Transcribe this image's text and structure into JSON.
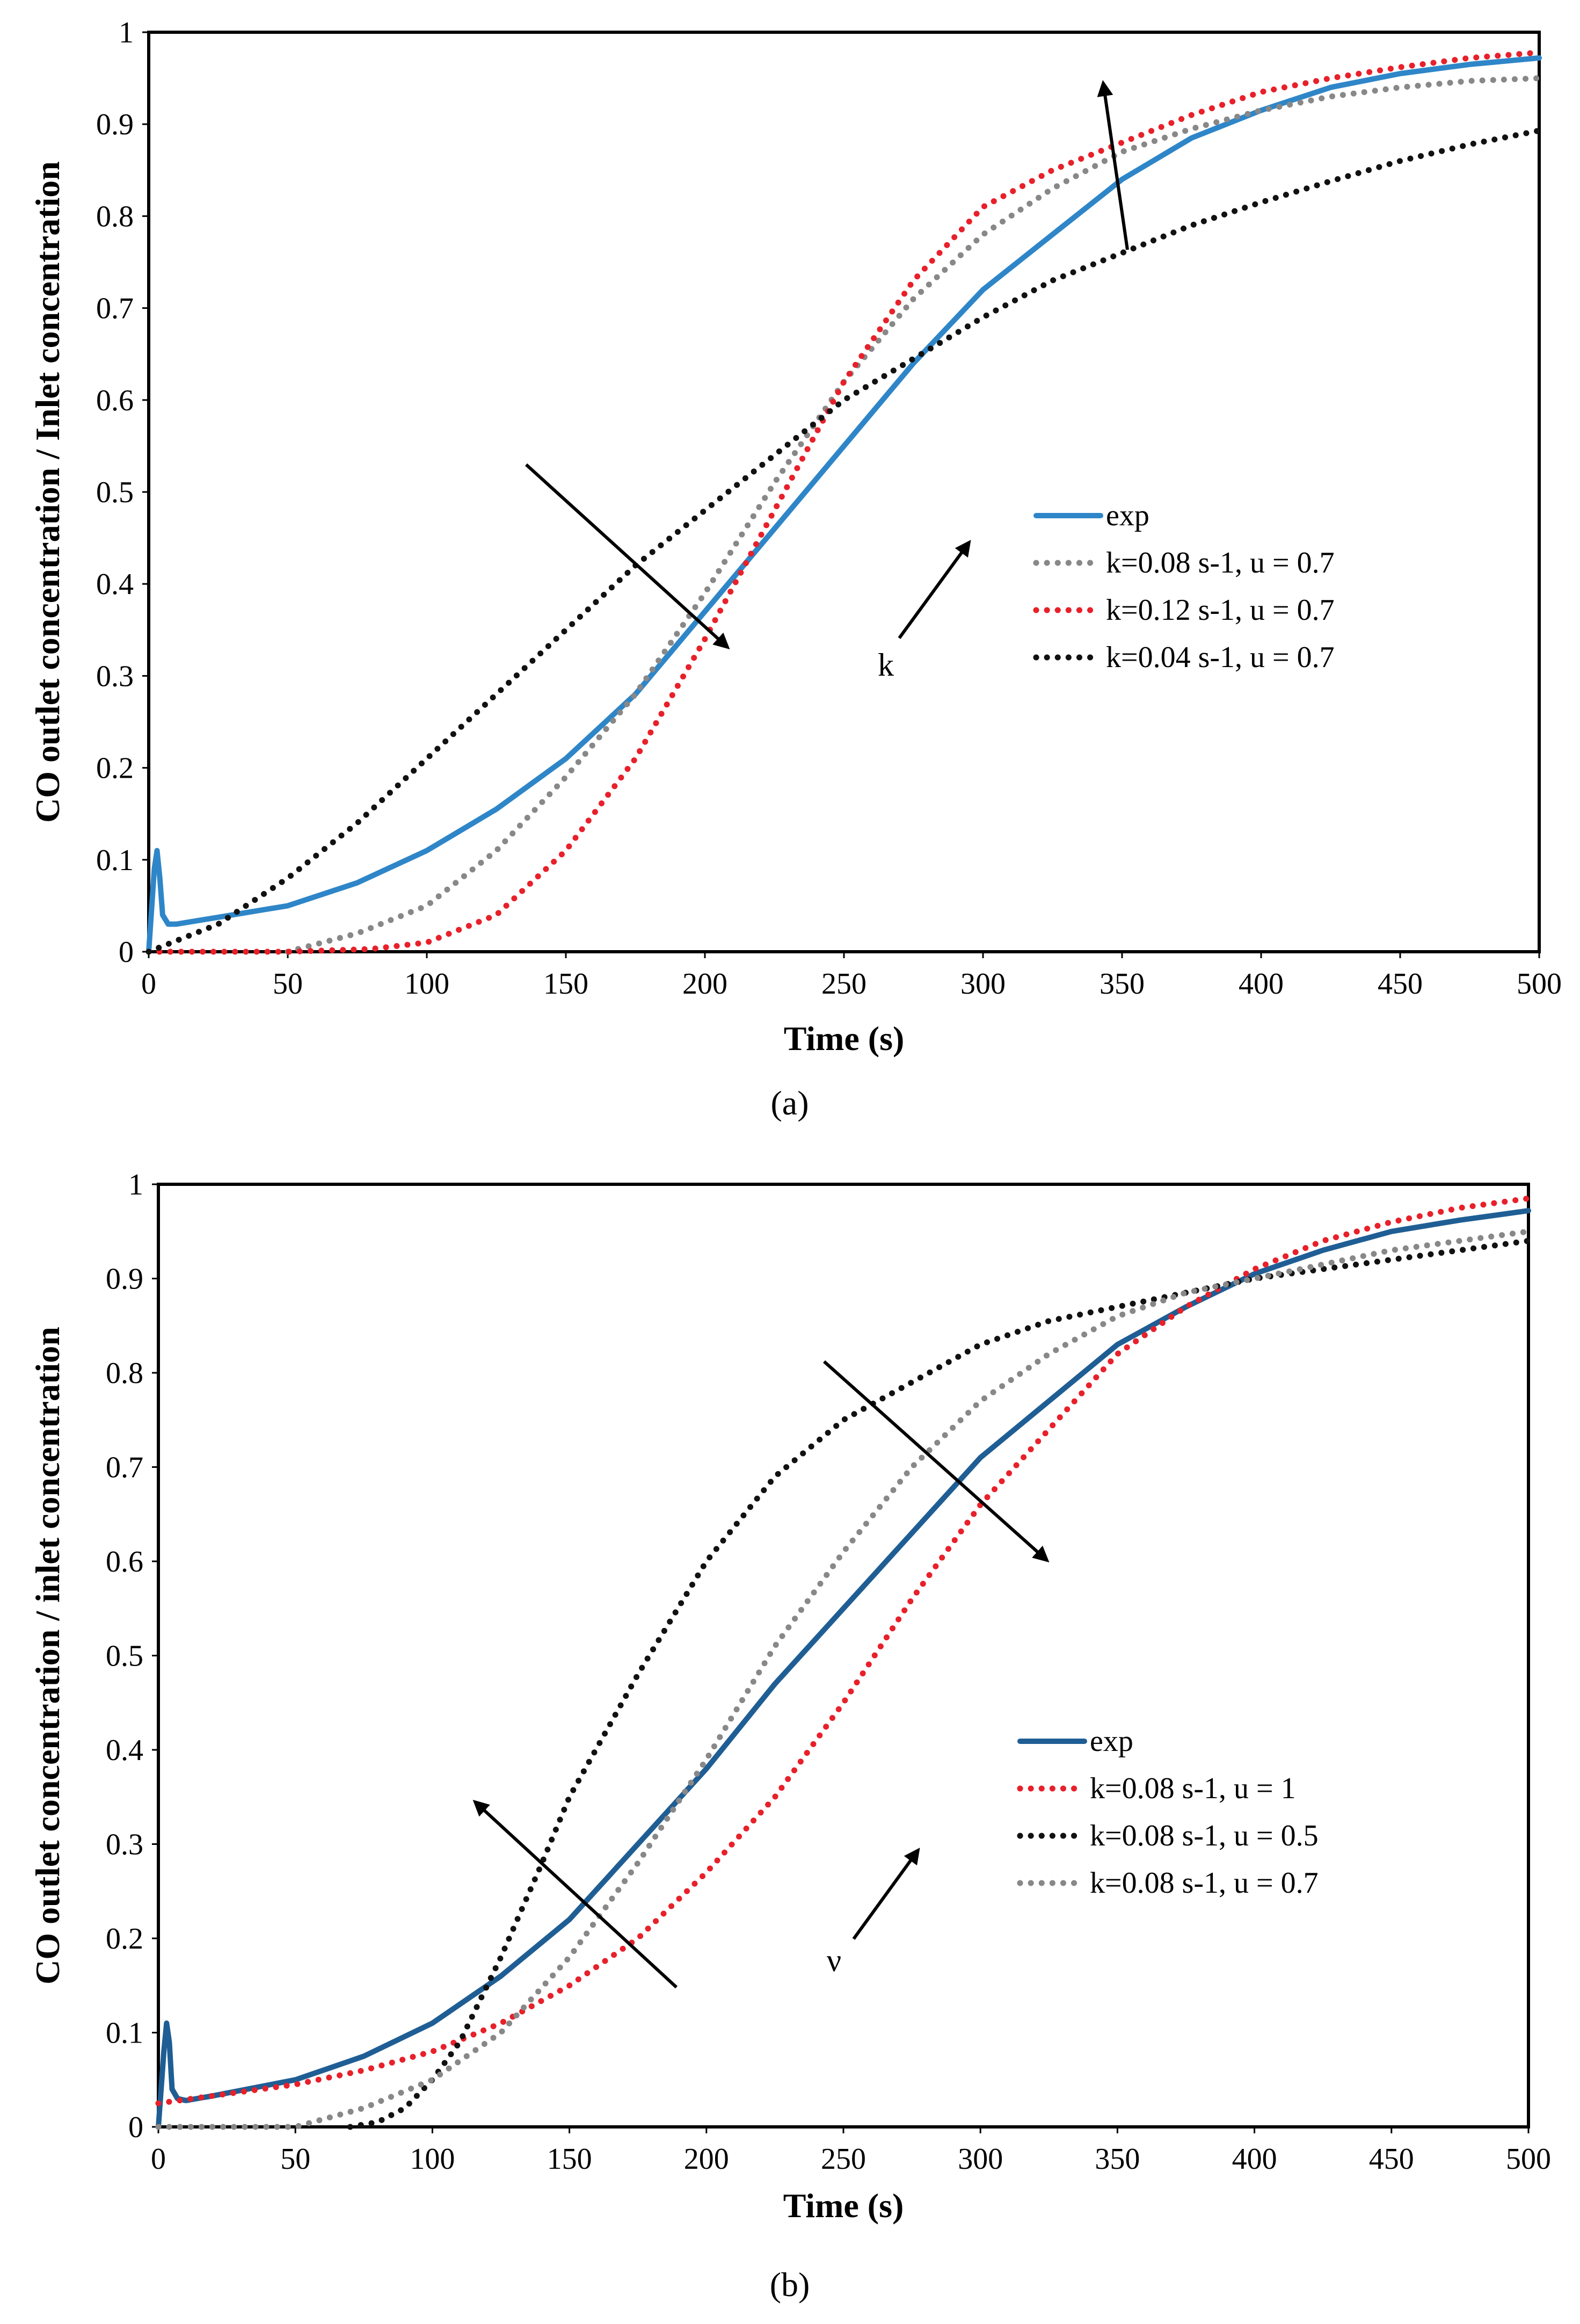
{
  "chart_data": [
    {
      "type": "line",
      "panel": "a",
      "panel_label": "(a)",
      "title": "",
      "xlabel": "Time (s)",
      "ylabel": "CO outlet concentration / Inlet concentration",
      "xlim": [
        0,
        500
      ],
      "ylim": [
        0,
        1
      ],
      "x_ticks": [
        0,
        50,
        100,
        150,
        200,
        250,
        300,
        350,
        400,
        450,
        500
      ],
      "y_ticks": [
        0,
        0.1,
        0.2,
        0.3,
        0.4,
        0.5,
        0.6,
        0.7,
        0.8,
        0.9,
        1
      ],
      "grid": false,
      "legend_position": "right-middle",
      "arrow_label": "k",
      "series": [
        {
          "name": "exp",
          "color": "#2E86C8",
          "style": "solid",
          "x": [
            0,
            2,
            3,
            4,
            5,
            7,
            10,
            20,
            50,
            75,
            100,
            125,
            150,
            175,
            200,
            225,
            250,
            275,
            300,
            325,
            350,
            375,
            400,
            425,
            450,
            475,
            500
          ],
          "y": [
            0,
            0.09,
            0.11,
            0.08,
            0.04,
            0.03,
            0.03,
            0.035,
            0.05,
            0.075,
            0.11,
            0.155,
            0.21,
            0.28,
            0.37,
            0.46,
            0.55,
            0.64,
            0.72,
            0.78,
            0.84,
            0.885,
            0.915,
            0.94,
            0.955,
            0.965,
            0.972
          ]
        },
        {
          "name": "k=0.08 s-1, u = 0.7",
          "color": "#888888",
          "style": "dotted",
          "x": [
            50,
            75,
            100,
            125,
            150,
            175,
            200,
            225,
            250,
            275,
            300,
            325,
            350,
            375,
            400,
            425,
            450,
            475,
            500
          ],
          "y": [
            0,
            0.02,
            0.05,
            0.11,
            0.19,
            0.28,
            0.39,
            0.51,
            0.62,
            0.71,
            0.78,
            0.83,
            0.87,
            0.895,
            0.915,
            0.93,
            0.94,
            0.947,
            0.95
          ]
        },
        {
          "name": "k=0.12 s-1, u = 0.7",
          "color": "#E8202A",
          "style": "dotted",
          "x": [
            0,
            50,
            80,
            100,
            125,
            150,
            175,
            200,
            225,
            250,
            275,
            300,
            325,
            350,
            375,
            400,
            425,
            450,
            475,
            500
          ],
          "y": [
            0,
            0,
            0.003,
            0.01,
            0.04,
            0.11,
            0.21,
            0.34,
            0.48,
            0.62,
            0.73,
            0.81,
            0.85,
            0.88,
            0.91,
            0.935,
            0.95,
            0.962,
            0.972,
            0.978
          ]
        },
        {
          "name": "k=0.04 s-1, u = 0.7",
          "color": "#111111",
          "style": "dotted",
          "x": [
            0,
            25,
            50,
            75,
            100,
            125,
            150,
            175,
            200,
            225,
            250,
            275,
            300,
            325,
            350,
            375,
            400,
            425,
            450,
            475,
            500
          ],
          "y": [
            0,
            0.03,
            0.08,
            0.14,
            0.21,
            0.28,
            0.35,
            0.42,
            0.48,
            0.54,
            0.6,
            0.645,
            0.69,
            0.73,
            0.76,
            0.79,
            0.815,
            0.838,
            0.86,
            0.878,
            0.893
          ]
        }
      ]
    },
    {
      "type": "line",
      "panel": "b",
      "panel_label": "(b)",
      "title": "",
      "xlabel": "Time (s)",
      "ylabel": "CO outlet concentration / inlet concentration",
      "xlim": [
        0,
        500
      ],
      "ylim": [
        0,
        1
      ],
      "x_ticks": [
        0,
        50,
        100,
        150,
        200,
        250,
        300,
        350,
        400,
        450,
        500
      ],
      "y_ticks": [
        0,
        0.1,
        0.2,
        0.3,
        0.4,
        0.5,
        0.6,
        0.7,
        0.8,
        0.9,
        1
      ],
      "grid": false,
      "legend_position": "right-middle",
      "arrow_label": "ν",
      "series": [
        {
          "name": "exp",
          "color": "#1F5E94",
          "style": "solid",
          "x": [
            0,
            2,
            3,
            4,
            5,
            7,
            10,
            20,
            50,
            75,
            100,
            125,
            150,
            175,
            200,
            225,
            250,
            275,
            300,
            325,
            350,
            375,
            400,
            425,
            450,
            475,
            500
          ],
          "y": [
            0,
            0.08,
            0.11,
            0.09,
            0.04,
            0.03,
            0.028,
            0.033,
            0.05,
            0.075,
            0.11,
            0.16,
            0.22,
            0.3,
            0.38,
            0.47,
            0.55,
            0.63,
            0.71,
            0.77,
            0.83,
            0.87,
            0.905,
            0.93,
            0.95,
            0.962,
            0.972
          ]
        },
        {
          "name": "k=0.08 s-1, u = 1",
          "color": "#E8202A",
          "style": "dotted",
          "x": [
            0,
            25,
            50,
            75,
            100,
            125,
            150,
            175,
            200,
            225,
            250,
            275,
            300,
            325,
            350,
            375,
            400,
            425,
            450,
            475,
            500
          ],
          "y": [
            0.025,
            0.035,
            0.045,
            0.06,
            0.08,
            0.11,
            0.15,
            0.2,
            0.27,
            0.35,
            0.45,
            0.56,
            0.66,
            0.74,
            0.82,
            0.87,
            0.91,
            0.94,
            0.96,
            0.975,
            0.985
          ]
        },
        {
          "name": "k=0.08 s-1, u = 0.5",
          "color": "#111111",
          "style": "dotted",
          "x": [
            70,
            80,
            90,
            100,
            110,
            125,
            140,
            150,
            175,
            200,
            225,
            250,
            275,
            300,
            325,
            350,
            375,
            400,
            425,
            450,
            475,
            500
          ],
          "y": [
            0,
            0.005,
            0.02,
            0.05,
            0.09,
            0.18,
            0.28,
            0.35,
            0.48,
            0.6,
            0.69,
            0.75,
            0.79,
            0.83,
            0.855,
            0.87,
            0.885,
            0.9,
            0.91,
            0.92,
            0.93,
            0.94
          ]
        },
        {
          "name": "k=0.08 s-1, u = 0.7",
          "color": "#888888",
          "style": "dotted",
          "x": [
            0,
            25,
            50,
            75,
            100,
            125,
            150,
            175,
            200,
            225,
            250,
            275,
            300,
            325,
            350,
            375,
            400,
            425,
            450,
            475,
            500
          ],
          "y": [
            0,
            0,
            0,
            0.02,
            0.05,
            0.1,
            0.18,
            0.28,
            0.39,
            0.51,
            0.61,
            0.7,
            0.77,
            0.82,
            0.86,
            0.885,
            0.9,
            0.915,
            0.93,
            0.94,
            0.95
          ]
        }
      ]
    }
  ]
}
